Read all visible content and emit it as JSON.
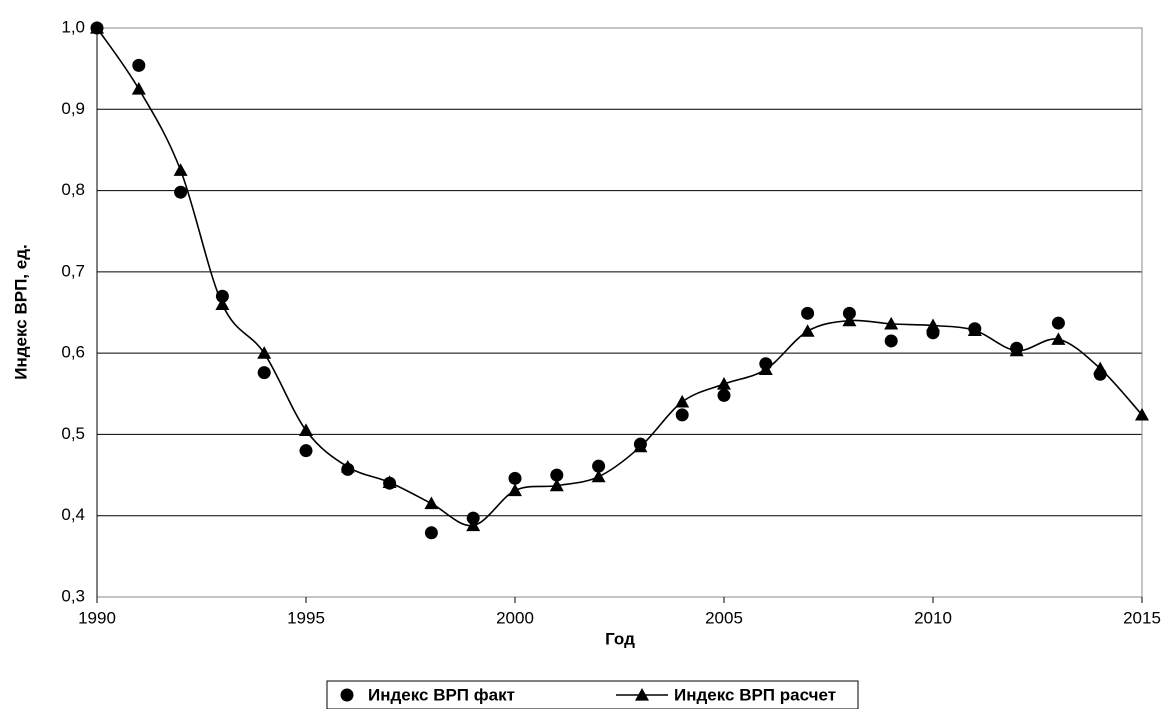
{
  "chart_data": {
    "type": "line",
    "x_label": "Год",
    "y_label": "Индекс ВРП, ед.",
    "x": [
      1990,
      1991,
      1992,
      1993,
      1994,
      1995,
      1996,
      1997,
      1998,
      1999,
      2000,
      2001,
      2002,
      2003,
      2004,
      2005,
      2006,
      2007,
      2008,
      2009,
      2010,
      2011,
      2012,
      2013,
      2014,
      2015
    ],
    "series": [
      {
        "name": "Индекс ВРП факт",
        "color": "#000000",
        "marker": "circle",
        "line": false,
        "values": [
          1.0,
          0.954,
          0.798,
          0.67,
          0.576,
          0.48,
          0.457,
          0.44,
          0.379,
          0.397,
          0.446,
          0.45,
          0.461,
          0.488,
          0.524,
          0.548,
          0.587,
          0.649,
          0.649,
          0.615,
          0.625,
          0.63,
          0.606,
          0.637,
          0.574,
          null
        ]
      },
      {
        "name": "Индекс ВРП расчет",
        "color": "#000000",
        "marker": "triangle",
        "line": true,
        "values": [
          1.0,
          0.925,
          0.825,
          0.66,
          0.6,
          0.505,
          0.46,
          0.441,
          0.415,
          0.388,
          0.431,
          0.437,
          0.448,
          0.485,
          0.54,
          0.562,
          0.58,
          0.627,
          0.64,
          0.636,
          0.634,
          0.628,
          0.603,
          0.617,
          0.581,
          0.524
        ]
      }
    ],
    "xlim": [
      1990,
      2015
    ],
    "xticks": [
      1990,
      1995,
      2000,
      2005,
      2010,
      2015
    ],
    "ylim": [
      0.3,
      1.0
    ],
    "yticks": [
      {
        "value": 0.3,
        "label": "0,3"
      },
      {
        "value": 0.4,
        "label": "0,4"
      },
      {
        "value": 0.5,
        "label": "0,5"
      },
      {
        "value": 0.6,
        "label": "0,6"
      },
      {
        "value": 0.7,
        "label": "0,7"
      },
      {
        "value": 0.8,
        "label": "0,8"
      },
      {
        "value": 0.9,
        "label": "0,9"
      },
      {
        "value": 1.0,
        "label": "1,0"
      }
    ],
    "grid": true,
    "legend": "bottom"
  }
}
